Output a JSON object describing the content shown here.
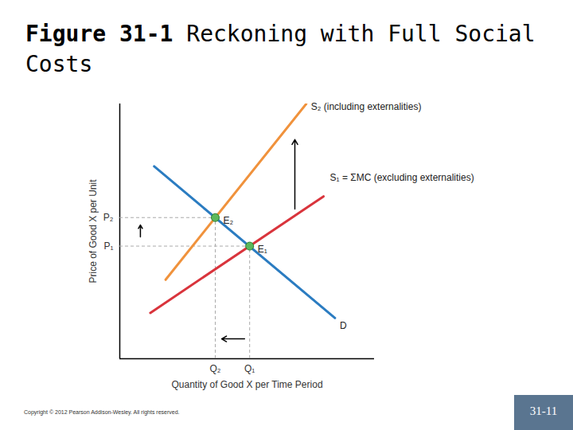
{
  "chart_data": {
    "type": "line",
    "title": "Figure 31-1",
    "subtitle": "Reckoning with Full Social Costs",
    "x_label": "Quantity of Good X per Time Period",
    "y_label": "Price of Good X per Unit",
    "xlim": [
      0,
      10
    ],
    "ylim": [
      0,
      10
    ],
    "xticks": [
      {
        "value": 3.75,
        "label": "Q₂"
      },
      {
        "value": 5.1,
        "label": "Q₁"
      }
    ],
    "yticks": [
      {
        "value": 4.42,
        "label": "P₁"
      },
      {
        "value": 5.54,
        "label": "P₂"
      }
    ],
    "grid": false,
    "series": [
      {
        "name": "D",
        "color": "#2b7cc1",
        "x": [
          1.35,
          8.45
        ],
        "values": [
          7.55,
          1.6
        ]
      },
      {
        "name": "S₁ = ΣMC (excluding externalities)",
        "color": "#d9343c",
        "x": [
          1.2,
          8.0
        ],
        "values": [
          1.8,
          6.37
        ]
      },
      {
        "name": "S₂ (including externalities)",
        "color": "#f0923c",
        "x": [
          1.8,
          7.32
        ],
        "values": [
          3.1,
          10
        ]
      }
    ],
    "points": [
      {
        "label": "E₂",
        "x": 3.75,
        "y": 5.54,
        "color": "#5cb85c"
      },
      {
        "label": "E₁",
        "x": 5.1,
        "y": 4.42,
        "color": "#5cb85c"
      }
    ],
    "shift_arrows": [
      {
        "x1": 6.875,
        "y1": 5.875,
        "x2": 6.875,
        "y2": 8.6
      },
      {
        "x1": 0.81,
        "y1": 4.78,
        "x2": 0.81,
        "y2": 5.25
      },
      {
        "x1": 4.9,
        "y1": 0.78,
        "x2": 4.0,
        "y2": 0.78
      }
    ]
  },
  "footer": {
    "copyright": "Copyright © 2012 Pearson Addison-Wesley. All rights reserved.",
    "page": "31-11"
  }
}
